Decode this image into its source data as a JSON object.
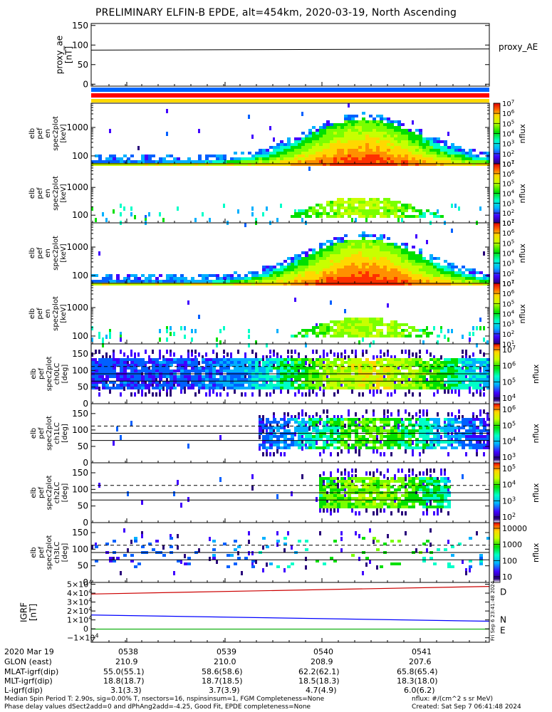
{
  "title": "PRELIMINARY ELFIN-B EPDE, alt=454km, 2020-03-19, North Ascending",
  "chart_data": [
    {
      "type": "line",
      "name": "proxy_ae-panel",
      "ylabel": "proxy_ae\n[nT]",
      "yticks": [
        "150",
        "100",
        "50",
        "0"
      ],
      "ylim": [
        -5,
        155
      ],
      "legend": "proxy_AE",
      "series": [
        {
          "name": "proxy_AE",
          "x": [
            "0537:30",
            "0541:50"
          ],
          "values": [
            87,
            90
          ]
        }
      ]
    },
    {
      "type": "heatmap",
      "name": "spectrogram-en-omni",
      "ylabel": "elb\npef\nen\nspec2plot\n[keV]",
      "yscale": "log",
      "yticks": [
        "1000",
        "100"
      ],
      "colorbar": {
        "label": "nflux",
        "ticks": [
          "10^7",
          "10^6",
          "10^5",
          "10^4",
          "10^3",
          "10^2",
          "10^1"
        ]
      }
    },
    {
      "type": "heatmap",
      "name": "spectrogram-en-anti",
      "ylabel": "elb\npef\nen\nspec2plot\n[keV]",
      "yscale": "log",
      "yticks": [
        "1000",
        "100"
      ],
      "colorbar": {
        "label": "nflux",
        "ticks": [
          "10^7",
          "10^6",
          "10^5",
          "10^4",
          "10^3",
          "10^2",
          "10^1"
        ]
      }
    },
    {
      "type": "heatmap",
      "name": "spectrogram-en-perp",
      "ylabel": "elb\npef\nen\nspec2plot\n[keV]",
      "yscale": "log",
      "yticks": [
        "1000",
        "100"
      ],
      "colorbar": {
        "label": "nflux",
        "ticks": [
          "10^7",
          "10^6",
          "10^5",
          "10^4",
          "10^3",
          "10^2",
          "10^1"
        ]
      }
    },
    {
      "type": "heatmap",
      "name": "spectrogram-en-para",
      "ylabel": "elb\npef\nen\nspec2plot\n[keV]",
      "yscale": "log",
      "yticks": [
        "1000",
        "100"
      ],
      "colorbar": {
        "label": "nflux",
        "ticks": [
          "10^7",
          "10^6",
          "10^5",
          "10^4",
          "10^3",
          "10^2",
          "10^1"
        ]
      }
    },
    {
      "type": "heatmap",
      "name": "pitch-angle-ch0LC",
      "ylabel": "elb\npef\nspec2plot\nch0LC\n[deg]",
      "yticks": [
        "150",
        "100",
        "50",
        "0"
      ],
      "ylim": [
        0,
        180
      ],
      "colorbar": {
        "label": "nflux",
        "ticks": [
          "10^7",
          "10^6",
          "10^5",
          "10^4"
        ]
      }
    },
    {
      "type": "heatmap",
      "name": "pitch-angle-ch1LC",
      "ylabel": "elb\npef\nspec2plot\nch1LC\n[deg]",
      "yticks": [
        "150",
        "100",
        "50",
        "0"
      ],
      "ylim": [
        0,
        180
      ],
      "colorbar": {
        "label": "nflux",
        "ticks": [
          "10^6",
          "10^5",
          "10^4",
          "10^3"
        ]
      }
    },
    {
      "type": "heatmap",
      "name": "pitch-angle-ch2LC",
      "ylabel": "elb\npef\nspec2plot\nch2LC\n[deg]",
      "yticks": [
        "150",
        "100",
        "50",
        "0"
      ],
      "ylim": [
        0,
        180
      ],
      "colorbar": {
        "label": "nflux",
        "ticks": [
          "10^5",
          "10^4",
          "10^3",
          "10^2"
        ]
      }
    },
    {
      "type": "heatmap",
      "name": "pitch-angle-ch3LC",
      "ylabel": "elb\npef\nspec2plot\nch3LC\n[deg]",
      "yticks": [
        "150",
        "100",
        "50",
        "0"
      ],
      "ylim": [
        0,
        180
      ],
      "colorbar": {
        "label": "nflux",
        "ticks": [
          "10000",
          "1000",
          "100",
          "10"
        ]
      }
    },
    {
      "type": "line",
      "name": "igrf-panel",
      "ylabel": "IGRF\n[nT]",
      "yticks": [
        "5×10^4",
        "4×10^4",
        "3×10^4",
        "2×10^4",
        "1×10^4",
        "0",
        "−1×10^4"
      ],
      "ylim": [
        -15000,
        52000
      ],
      "series": [
        {
          "name": "D",
          "color": "#cc0000",
          "values": [
            39000,
            47500
          ]
        },
        {
          "name": "N",
          "color": "#0000ff",
          "values": [
            15500,
            8500
          ]
        },
        {
          "name": "E",
          "color": "#00aa00",
          "values": [
            -300,
            -300
          ]
        }
      ]
    }
  ],
  "time_axis": {
    "row_labels": [
      "2020 Mar 19",
      "GLON (east)",
      "MLAT-igrf(dip)",
      "MLT-igrf(dip)",
      "L-igrf(dip)"
    ],
    "columns": [
      {
        "time": "0538",
        "glon": "210.9",
        "mlat": "55.0(55.1)",
        "mlt": "18.8(18.7)",
        "l": "3.1(3.3)"
      },
      {
        "time": "0539",
        "glon": "210.0",
        "mlat": "58.6(58.6)",
        "mlt": "18.7(18.5)",
        "l": "3.7(3.9)"
      },
      {
        "time": "0540",
        "glon": "208.9",
        "mlat": "62.2(62.1)",
        "mlt": "18.5(18.3)",
        "l": "4.7(4.9)"
      },
      {
        "time": "0541",
        "glon": "207.6",
        "mlat": "65.8(65.4)",
        "mlt": "18.3(18.0)",
        "l": "6.0(6.2)"
      }
    ]
  },
  "footer": {
    "line1": "Median Spin Period T: 2.90s, sig=0.00% T, nsectors=16, nspinsinsum=1, FGM Completeness=None",
    "line2": "Phase delay values dSect2add=0 and dPhAng2add=-4.25, Good Fit, EPDE completeness=None",
    "units": "nflux: #/(cm^2 s sr MeV)",
    "created": "Created: Sat Sep  7 06:41:48 2024",
    "stamp": "Fri Sep  6 23:41:48 2024"
  },
  "colors": {
    "bar_blue": "#0066ff",
    "bar_red": "#ff0000",
    "bar_yellow": "#ffd800"
  }
}
